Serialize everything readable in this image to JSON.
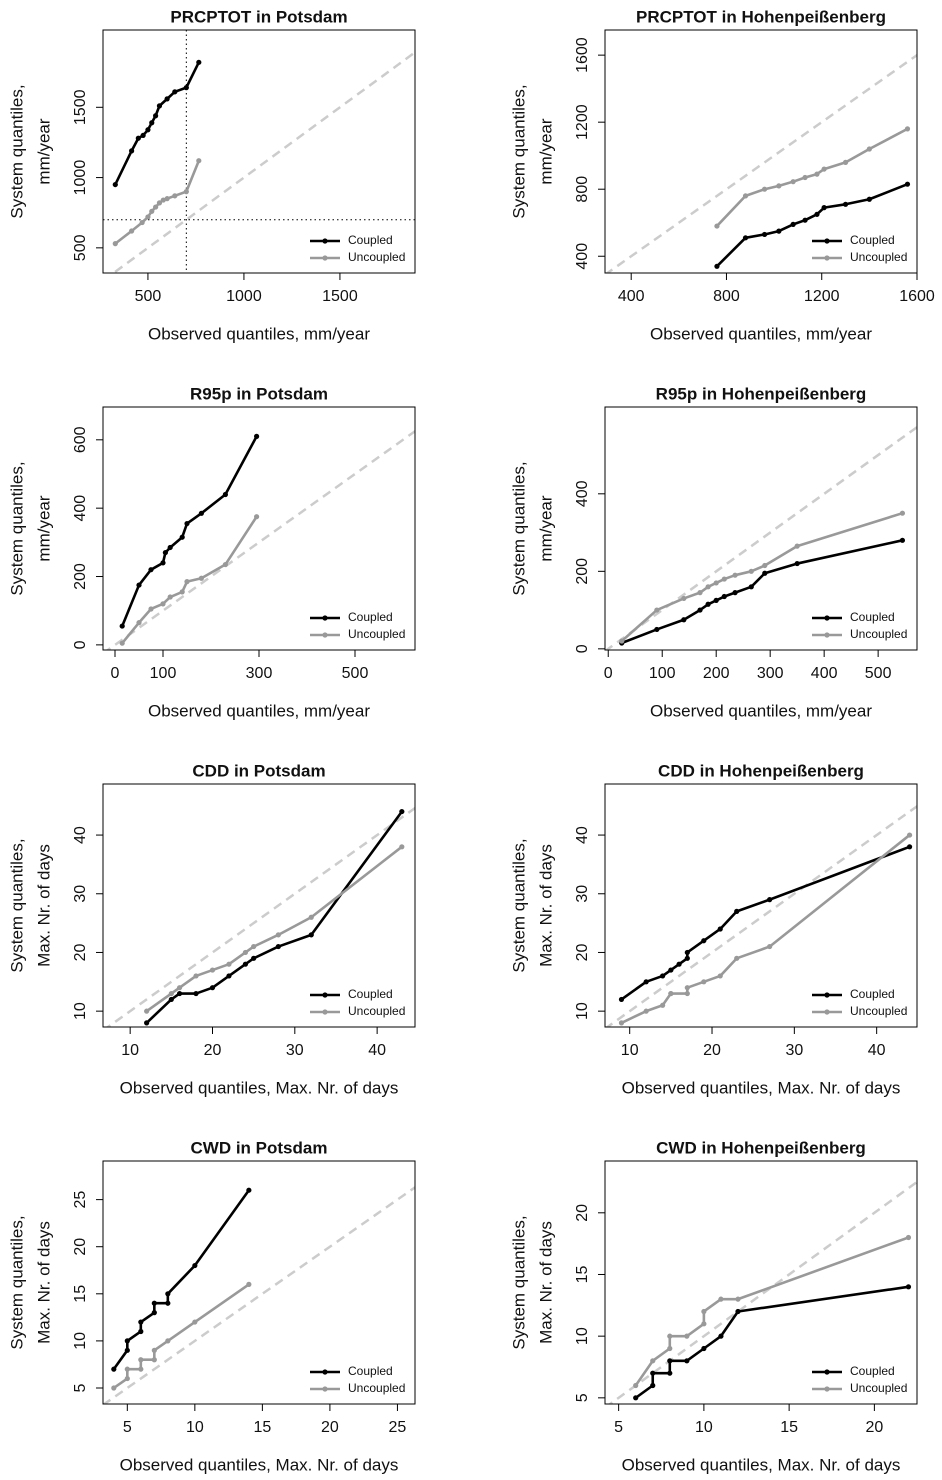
{
  "chart_data": [
    {
      "type": "line",
      "title": "PRCPTOT in Potsdam",
      "xlabel": "Observed quantiles, mm/year",
      "ylabel": [
        "System quantiles,",
        "mm/year"
      ],
      "xlim": [
        266,
        1891
      ],
      "ylim": [
        321,
        2050
      ],
      "xticks": [
        500,
        1000,
        1500
      ],
      "yticks": [
        500,
        1000,
        1500
      ],
      "vline": 700,
      "hline": 700,
      "legend": "bottom-right",
      "series": [
        {
          "name": "Coupled",
          "color": "#000000",
          "x": [
            330,
            415,
            450,
            475,
            500,
            520,
            540,
            560,
            600,
            640,
            700,
            765
          ],
          "values": [
            950,
            1190,
            1280,
            1300,
            1340,
            1390,
            1440,
            1510,
            1560,
            1610,
            1640,
            1820
          ]
        },
        {
          "name": "Uncoupled",
          "color": "#999999",
          "x": [
            330,
            415,
            470,
            500,
            520,
            540,
            560,
            580,
            600,
            640,
            700,
            765
          ],
          "values": [
            530,
            620,
            680,
            720,
            760,
            790,
            820,
            840,
            850,
            870,
            900,
            1120
          ]
        }
      ]
    },
    {
      "type": "line",
      "title": "PRCPTOT in Hohenpeißenberg",
      "xlabel": "Observed quantiles, mm/year",
      "ylabel": [
        "System quantiles,",
        "mm/year"
      ],
      "xlim": [
        290,
        1600
      ],
      "ylim": [
        300,
        1750
      ],
      "xticks": [
        400,
        800,
        1200,
        1600
      ],
      "yticks": [
        400,
        800,
        1200,
        1600
      ],
      "legend": "bottom-right",
      "series": [
        {
          "name": "Coupled",
          "color": "#000000",
          "x": [
            760,
            880,
            960,
            1020,
            1080,
            1130,
            1180,
            1210,
            1300,
            1400,
            1560
          ],
          "values": [
            340,
            510,
            530,
            550,
            590,
            615,
            650,
            690,
            710,
            740,
            830
          ]
        },
        {
          "name": "Uncoupled",
          "color": "#999999",
          "x": [
            760,
            880,
            960,
            1020,
            1080,
            1130,
            1180,
            1210,
            1300,
            1400,
            1560
          ],
          "values": [
            580,
            760,
            800,
            820,
            845,
            870,
            890,
            920,
            960,
            1040,
            1160
          ]
        }
      ]
    },
    {
      "type": "line",
      "title": "R95p in Potsdam",
      "xlabel": "Observed quantiles, mm/year",
      "ylabel": [
        "System quantiles,",
        "mm/year"
      ],
      "xlim": [
        -25,
        625
      ],
      "ylim": [
        -15,
        696
      ],
      "xticks": [
        0,
        100,
        300,
        500
      ],
      "yticks": [
        0,
        200,
        400,
        600
      ],
      "legend": "bottom-right",
      "series": [
        {
          "name": "Coupled",
          "color": "#000000",
          "x": [
            15,
            50,
            75,
            100,
            105,
            115,
            140,
            150,
            180,
            230,
            295
          ],
          "values": [
            55,
            175,
            220,
            240,
            270,
            285,
            315,
            355,
            385,
            440,
            610
          ]
        },
        {
          "name": "Uncoupled",
          "color": "#999999",
          "x": [
            15,
            50,
            75,
            100,
            115,
            140,
            150,
            180,
            230,
            295
          ],
          "values": [
            5,
            65,
            105,
            120,
            140,
            155,
            185,
            195,
            235,
            375
          ]
        }
      ]
    },
    {
      "type": "line",
      "title": "R95p in Hohenpeißenberg",
      "xlabel": "Observed quantiles, mm/year",
      "ylabel": [
        "System quantiles,",
        "mm/year"
      ],
      "xlim": [
        -6,
        572
      ],
      "ylim": [
        -3,
        624
      ],
      "xticks": [
        0,
        100,
        200,
        300,
        400,
        500
      ],
      "yticks": [
        0,
        200,
        400
      ],
      "legend": "bottom-right",
      "series": [
        {
          "name": "Coupled",
          "color": "#000000",
          "x": [
            25,
            90,
            140,
            170,
            185,
            200,
            215,
            235,
            265,
            290,
            350,
            545
          ],
          "values": [
            15,
            50,
            75,
            100,
            115,
            125,
            135,
            145,
            160,
            195,
            220,
            280
          ]
        },
        {
          "name": "Uncoupled",
          "color": "#999999",
          "x": [
            25,
            90,
            140,
            170,
            185,
            200,
            215,
            235,
            265,
            290,
            350,
            545
          ],
          "values": [
            20,
            100,
            130,
            145,
            160,
            170,
            180,
            190,
            200,
            215,
            265,
            350
          ]
        }
      ]
    },
    {
      "type": "line",
      "title": "CDD in Potsdam",
      "xlabel": "Observed quantiles, Max. Nr. of days",
      "ylabel": [
        "System quantiles,",
        "Max. Nr. of days"
      ],
      "xlim": [
        6.7,
        44.6
      ],
      "ylim": [
        7.3,
        48.7
      ],
      "xticks": [
        10,
        20,
        30,
        40
      ],
      "yticks": [
        10,
        20,
        30,
        40
      ],
      "legend": "bottom-right",
      "series": [
        {
          "name": "Coupled",
          "color": "#000000",
          "x": [
            12,
            15,
            16,
            18,
            20,
            22,
            24,
            25,
            28,
            32,
            43
          ],
          "values": [
            8,
            12,
            13,
            13,
            14,
            16,
            18,
            19,
            21,
            23,
            44
          ]
        },
        {
          "name": "Uncoupled",
          "color": "#999999",
          "x": [
            12,
            15,
            16,
            18,
            20,
            22,
            24,
            25,
            28,
            32,
            43
          ],
          "values": [
            10,
            13,
            14,
            16,
            17,
            18,
            20,
            21,
            23,
            26,
            38
          ]
        }
      ]
    },
    {
      "type": "line",
      "title": "CDD in Hohenpeißenberg",
      "xlabel": "Observed quantiles, Max. Nr. of days",
      "ylabel": [
        "System quantiles,",
        "Max. Nr. of days"
      ],
      "xlim": [
        7,
        44.9
      ],
      "ylim": [
        7.3,
        48.7
      ],
      "xticks": [
        10,
        20,
        30,
        40
      ],
      "yticks": [
        10,
        20,
        30,
        40
      ],
      "legend": "bottom-right",
      "series": [
        {
          "name": "Coupled",
          "color": "#000000",
          "x": [
            9,
            12,
            14,
            15,
            16,
            17,
            17,
            19,
            21,
            23,
            27,
            44
          ],
          "values": [
            12,
            15,
            16,
            17,
            18,
            19,
            20,
            22,
            24,
            27,
            29,
            38
          ]
        },
        {
          "name": "Uncoupled",
          "color": "#999999",
          "x": [
            9,
            12,
            14,
            15,
            15,
            17,
            17,
            19,
            21,
            23,
            27,
            44
          ],
          "values": [
            8,
            10,
            11,
            13,
            13,
            13,
            14,
            15,
            16,
            19,
            21,
            40
          ]
        }
      ]
    },
    {
      "type": "line",
      "title": "CWD in Potsdam",
      "xlabel": "Observed quantiles, Max. Nr. of days",
      "ylabel": [
        "System quantiles,",
        "Max. Nr. of days"
      ],
      "xlim": [
        3.2,
        26.3
      ],
      "ylim": [
        3.3,
        29.1
      ],
      "xticks": [
        5,
        10,
        15,
        20,
        25
      ],
      "yticks": [
        5,
        10,
        15,
        20,
        25
      ],
      "legend": "bottom-right",
      "series": [
        {
          "name": "Coupled",
          "color": "#000000",
          "x": [
            4,
            5,
            5,
            6,
            6,
            7,
            7,
            8,
            8,
            10,
            14
          ],
          "values": [
            7,
            9,
            10,
            11,
            12,
            13,
            14,
            14,
            15,
            18,
            26
          ]
        },
        {
          "name": "Uncoupled",
          "color": "#999999",
          "x": [
            4,
            5,
            5,
            6,
            6,
            7,
            7,
            8,
            10,
            14
          ],
          "values": [
            5,
            6,
            7,
            7,
            8,
            8,
            9,
            10,
            12,
            16
          ]
        }
      ]
    },
    {
      "type": "line",
      "title": "CWD in Hohenpeißenberg",
      "xlabel": "Observed quantiles, Max. Nr. of days",
      "ylabel": [
        "System quantiles,",
        "Max. Nr. of days"
      ],
      "xlim": [
        4.2,
        22.5
      ],
      "ylim": [
        4.5,
        24.2
      ],
      "xticks": [
        5,
        10,
        15,
        20
      ],
      "yticks": [
        5,
        10,
        15,
        20
      ],
      "legend": "bottom-right",
      "series": [
        {
          "name": "Coupled",
          "color": "#000000",
          "x": [
            6,
            7,
            7,
            8,
            8,
            9,
            10,
            11,
            12,
            22
          ],
          "values": [
            5,
            6,
            7,
            7,
            8,
            8,
            9,
            10,
            12,
            14
          ]
        },
        {
          "name": "Uncoupled",
          "color": "#999999",
          "x": [
            6,
            7,
            8,
            8,
            9,
            10,
            10,
            11,
            12,
            22
          ],
          "values": [
            6,
            8,
            9,
            10,
            10,
            11,
            12,
            13,
            13,
            18
          ]
        }
      ]
    }
  ]
}
